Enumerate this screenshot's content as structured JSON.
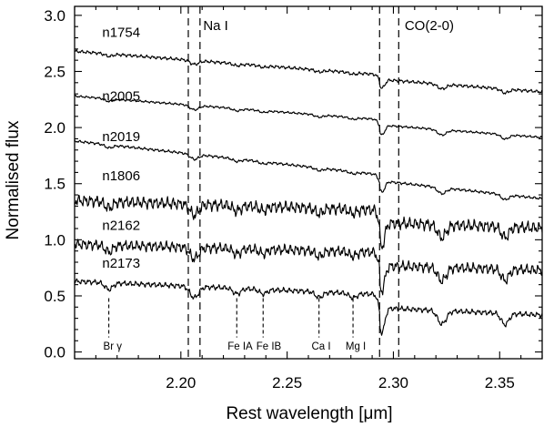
{
  "chart_data": {
    "type": "line",
    "xlabel": "Rest wavelength [μm]",
    "ylabel": "Normalised flux",
    "xlim": [
      2.15,
      2.37
    ],
    "ylim": [
      -0.06,
      3.08
    ],
    "x_ticks": [
      2.2,
      2.25,
      2.3,
      2.35
    ],
    "x_tick_labels": [
      "2.20",
      "2.25",
      "2.30",
      "2.35"
    ],
    "y_ticks": [
      0.0,
      0.5,
      1.0,
      1.5,
      2.0,
      2.5,
      3.0
    ],
    "y_tick_labels": [
      "0.0",
      "0.5",
      "1.0",
      "1.5",
      "2.0",
      "2.5",
      "3.0"
    ],
    "grid": false,
    "series": [
      {
        "name": "n1754",
        "label_x": 2.163,
        "label_y": 2.81,
        "start": 2.68,
        "end": 2.36,
        "noise": 0.012,
        "depth": 0.7,
        "color": "#000000"
      },
      {
        "name": "n2005",
        "label_x": 2.163,
        "label_y": 2.24,
        "start": 2.28,
        "end": 1.96,
        "noise": 0.008,
        "depth": 0.8,
        "color": "#000000"
      },
      {
        "name": "n2019",
        "label_x": 2.163,
        "label_y": 1.88,
        "start": 1.88,
        "end": 1.42,
        "noise": 0.01,
        "depth": 0.9,
        "color": "#000000"
      },
      {
        "name": "n1806",
        "label_x": 2.163,
        "label_y": 1.53,
        "start": 1.35,
        "end": 1.22,
        "noise": 0.045,
        "depth": 1.9,
        "color": "#000000"
      },
      {
        "name": "n2162",
        "label_x": 2.163,
        "label_y": 1.09,
        "start": 0.96,
        "end": 0.85,
        "noise": 0.04,
        "depth": 2.0,
        "color": "#000000"
      },
      {
        "name": "n2173",
        "label_x": 2.163,
        "label_y": 0.75,
        "start": 0.63,
        "end": 0.45,
        "noise": 0.02,
        "depth": 2.0,
        "color": "#000000"
      }
    ],
    "vertical_lines": [
      {
        "x": 2.2035,
        "label": "Na I",
        "label_x": 2.2105,
        "label_y": 2.87
      },
      {
        "x": 2.209
      },
      {
        "x": 2.2935,
        "label": "CO(2-0)",
        "label_x": 2.3053,
        "label_y": 2.87
      },
      {
        "x": 2.3025
      }
    ],
    "features": [
      {
        "label": "Br γ",
        "x": 2.1661,
        "label_x": 2.1635
      },
      {
        "label": "Fe IA",
        "x": 2.2263,
        "label_x": 2.222
      },
      {
        "label": "Fe IB",
        "x": 2.2387,
        "label_x": 2.2355
      },
      {
        "label": "Ca I",
        "x": 2.265,
        "label_x": 2.2615
      },
      {
        "label": "Mg I",
        "x": 2.281,
        "label_x": 2.2775
      }
    ]
  }
}
